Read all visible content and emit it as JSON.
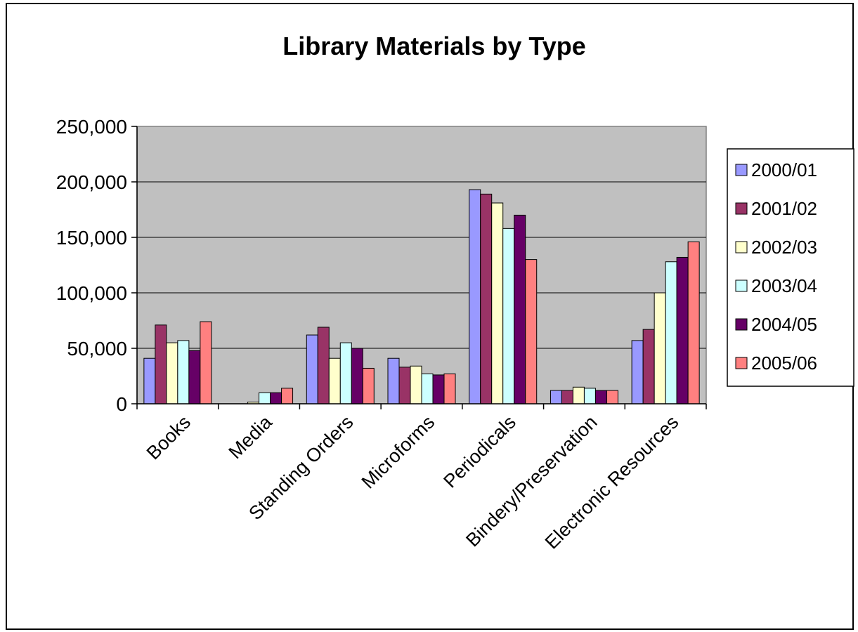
{
  "chart_data": {
    "type": "bar",
    "title": "Library Materials by Type",
    "xlabel": "",
    "ylabel": "",
    "ylim": [
      0,
      250000
    ],
    "yticks": [
      0,
      50000,
      100000,
      150000,
      200000,
      250000
    ],
    "ytick_labels": [
      "0",
      "50,000",
      "100,000",
      "150,000",
      "200,000",
      "250,000"
    ],
    "grid": true,
    "legend_position": "right",
    "categories": [
      "Books",
      "Media",
      "Standing Orders",
      "Microforms",
      "Periodicals",
      "Bindery/Preservation",
      "Electronic Resources"
    ],
    "series": [
      {
        "name": "2000/01",
        "color": "#9999FF",
        "values": [
          41000,
          0,
          62000,
          41000,
          193000,
          12000,
          57000
        ]
      },
      {
        "name": "2001/02",
        "color": "#993366",
        "values": [
          71000,
          0,
          69000,
          33000,
          189000,
          12000,
          67000
        ]
      },
      {
        "name": "2002/03",
        "color": "#FFFFCC",
        "values": [
          55000,
          1500,
          41000,
          34000,
          181000,
          15000,
          100000
        ]
      },
      {
        "name": "2003/04",
        "color": "#CCFFFF",
        "values": [
          57000,
          10000,
          55000,
          27000,
          158000,
          14000,
          128000
        ]
      },
      {
        "name": "2004/05",
        "color": "#660066",
        "values": [
          48000,
          10000,
          50000,
          26000,
          170000,
          12000,
          132000
        ]
      },
      {
        "name": "2005/06",
        "color": "#FF8080",
        "values": [
          74000,
          14000,
          32000,
          27000,
          130000,
          12000,
          146000
        ]
      }
    ],
    "plot_background": "#C0C0C0"
  }
}
